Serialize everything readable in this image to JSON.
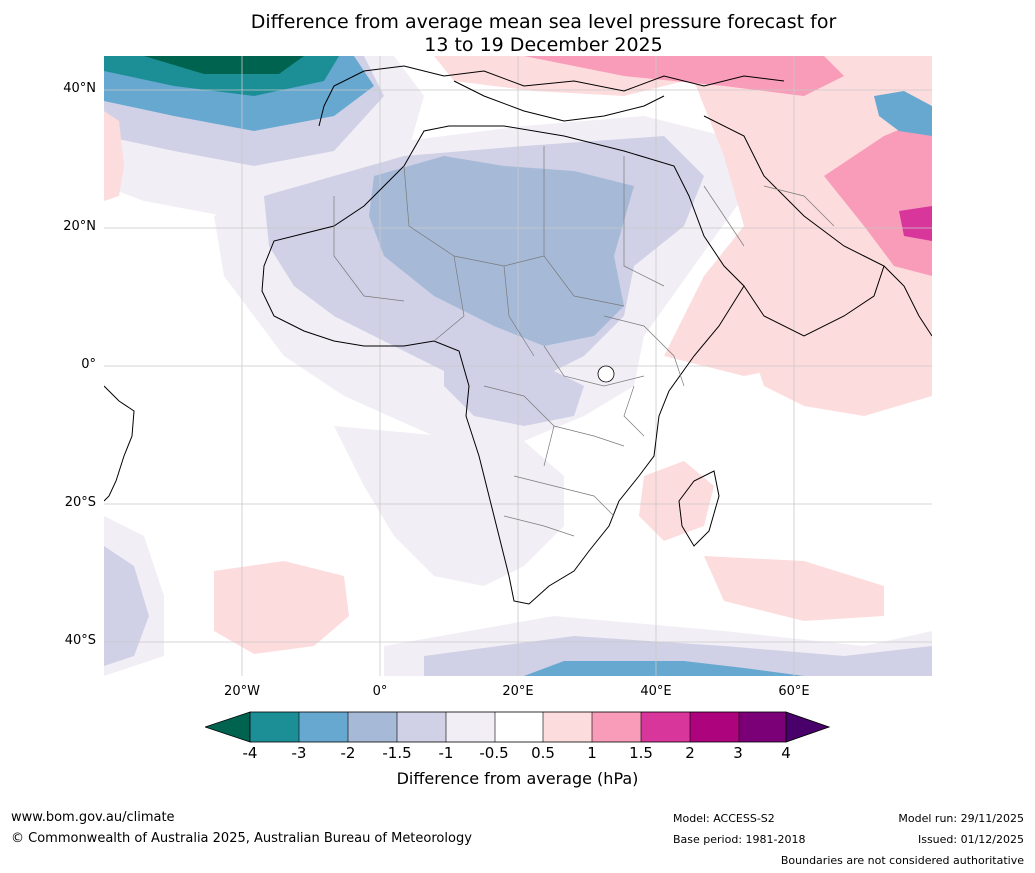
{
  "title": {
    "line1": "Difference from average mean sea level pressure forecast for",
    "line2": "13 to 19 December 2025"
  },
  "axes": {
    "lat_labels": [
      "40°N",
      "20°N",
      "0°",
      "20°S",
      "40°S"
    ],
    "lon_labels": [
      "20°W",
      "0°",
      "20°E",
      "40°E",
      "60°E"
    ]
  },
  "colorbar": {
    "ticks": [
      "-4",
      "-3",
      "-2",
      "-1.5",
      "-1",
      "-0.5",
      "0.5",
      "1",
      "1.5",
      "2",
      "3",
      "4"
    ],
    "colors": [
      "#00634f",
      "#1c8f96",
      "#67a8d0",
      "#a6bad8",
      "#d0d1e6",
      "#f2eef5",
      "#ffffff",
      "#fddcdd",
      "#f89cb9",
      "#d9369c",
      "#ad047e",
      "#7b0077",
      "#49006a"
    ],
    "label": "Difference from average (hPa)"
  },
  "footer": {
    "website": "www.bom.gov.au/climate",
    "copyright": "© Commonwealth of Australia 2025, Australian Bureau of Meteorology",
    "model": "Model: ACCESS-S2",
    "base_period": "Base period: 1981-2018",
    "model_run": "Model run: 29/11/2025",
    "issued": "Issued: 01/12/2025",
    "disclaimer": "Boundaries are not considered authoritative"
  }
}
